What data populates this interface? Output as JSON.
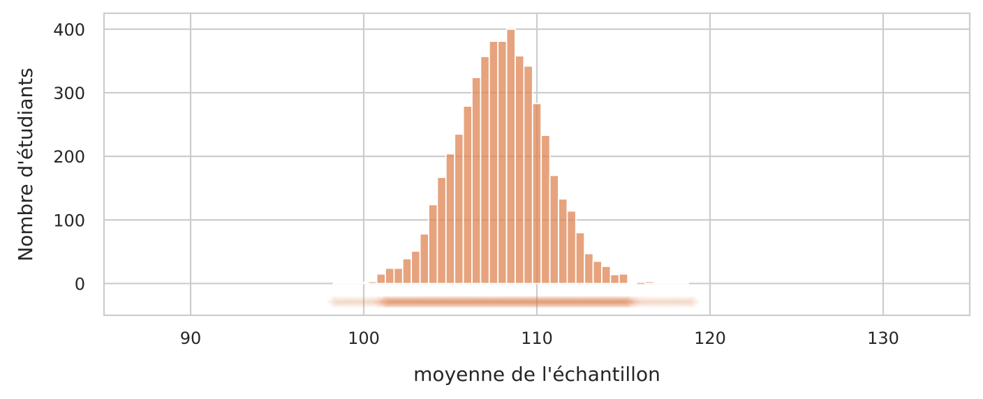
{
  "chart_data": {
    "type": "bar",
    "title": "",
    "xlabel": "moyenne de l'échantillon",
    "ylabel": "Nombre d'étudiants",
    "xlim": [
      85,
      135
    ],
    "ylim": [
      -50,
      425
    ],
    "xticks": [
      90,
      100,
      110,
      120,
      130
    ],
    "yticks": [
      0,
      100,
      200,
      300,
      400
    ],
    "grid": true,
    "bar_color": "#dd8452",
    "bin_width": 0.5,
    "bins": [
      {
        "x": 98.5,
        "count": 1
      },
      {
        "x": 99.0,
        "count": 1
      },
      {
        "x": 99.5,
        "count": 2
      },
      {
        "x": 100.0,
        "count": 2
      },
      {
        "x": 100.5,
        "count": 3
      },
      {
        "x": 101.0,
        "count": 15
      },
      {
        "x": 101.5,
        "count": 24
      },
      {
        "x": 102.0,
        "count": 24
      },
      {
        "x": 102.5,
        "count": 39
      },
      {
        "x": 103.0,
        "count": 51
      },
      {
        "x": 103.5,
        "count": 78
      },
      {
        "x": 104.0,
        "count": 124
      },
      {
        "x": 104.5,
        "count": 167
      },
      {
        "x": 105.0,
        "count": 204
      },
      {
        "x": 105.5,
        "count": 235
      },
      {
        "x": 106.0,
        "count": 279
      },
      {
        "x": 106.5,
        "count": 324
      },
      {
        "x": 107.0,
        "count": 357
      },
      {
        "x": 107.5,
        "count": 381
      },
      {
        "x": 108.0,
        "count": 381
      },
      {
        "x": 108.5,
        "count": 400
      },
      {
        "x": 109.0,
        "count": 358
      },
      {
        "x": 109.5,
        "count": 342
      },
      {
        "x": 110.0,
        "count": 283
      },
      {
        "x": 110.5,
        "count": 233
      },
      {
        "x": 111.0,
        "count": 170
      },
      {
        "x": 111.5,
        "count": 133
      },
      {
        "x": 112.0,
        "count": 114
      },
      {
        "x": 112.5,
        "count": 80
      },
      {
        "x": 113.0,
        "count": 47
      },
      {
        "x": 113.5,
        "count": 35
      },
      {
        "x": 114.0,
        "count": 27
      },
      {
        "x": 114.5,
        "count": 14
      },
      {
        "x": 115.0,
        "count": 15
      },
      {
        "x": 115.5,
        "count": 1
      },
      {
        "x": 116.5,
        "count": 3
      },
      {
        "x": 117.0,
        "count": 1
      },
      {
        "x": 117.5,
        "count": 1
      },
      {
        "x": 118.0,
        "count": 1
      },
      {
        "x": 118.5,
        "count": 1
      }
    ],
    "rug": {
      "marker": "diamond",
      "y": -29,
      "x_range": [
        98.2,
        119.1
      ],
      "dense_range": [
        100.8,
        115.8
      ]
    }
  }
}
